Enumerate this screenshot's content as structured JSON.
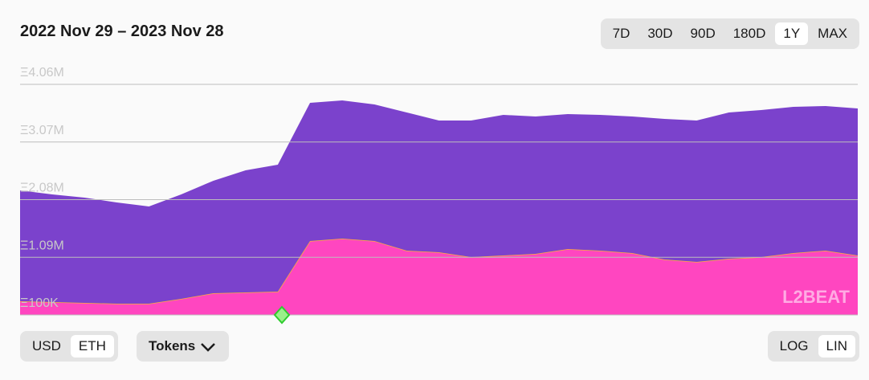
{
  "chart_data": {
    "type": "stacked-area",
    "title": "2022 Nov 29 – 2023 Nov 28",
    "series": [
      {
        "name": null,
        "color": "#ff46c0",
        "line_color": "#ffb03a",
        "values": [
          335000,
          321000,
          307000,
          293000,
          293000,
          376000,
          473000,
          486000,
          500000,
          1370000,
          1411000,
          1370000,
          1204000,
          1176000,
          1094000,
          1121000,
          1149000,
          1232000,
          1204000,
          1163000,
          1052000,
          1011000,
          1066000,
          1094000,
          1163000,
          1204000,
          1121000
        ]
      },
      {
        "name": null,
        "color": "#7b42cc",
        "values": [
          1904000,
          1849000,
          1808000,
          1739000,
          1670000,
          1794000,
          1932000,
          2098000,
          2181000,
          2373000,
          2373000,
          2345000,
          2373000,
          2263000,
          2345000,
          2415000,
          2359000,
          2318000,
          2332000,
          2345000,
          2415000,
          2428000,
          2511000,
          2525000,
          2511000,
          2484000,
          2525000
        ]
      }
    ],
    "ylim": [
      100000,
      4060000
    ],
    "yticks": [
      {
        "value": 100000,
        "label": "Ξ100K"
      },
      {
        "value": 1090000,
        "label": "Ξ1.09M"
      },
      {
        "value": 2080000,
        "label": "Ξ2.08M"
      },
      {
        "value": 3070000,
        "label": "Ξ3.07M"
      },
      {
        "value": 4060000,
        "label": "Ξ4.06M"
      }
    ],
    "grid": true,
    "watermark": "L2BEAT"
  },
  "controls": {
    "ranges": [
      {
        "label": "7D",
        "selected": false
      },
      {
        "label": "30D",
        "selected": false
      },
      {
        "label": "90D",
        "selected": false
      },
      {
        "label": "180D",
        "selected": false
      },
      {
        "label": "1Y",
        "selected": true
      },
      {
        "label": "MAX",
        "selected": false
      }
    ],
    "currency": [
      {
        "label": "USD",
        "selected": false
      },
      {
        "label": "ETH",
        "selected": true
      }
    ],
    "breakdown": "Tokens",
    "scale": [
      {
        "label": "LOG",
        "selected": false
      },
      {
        "label": "LIN",
        "selected": true
      }
    ]
  }
}
